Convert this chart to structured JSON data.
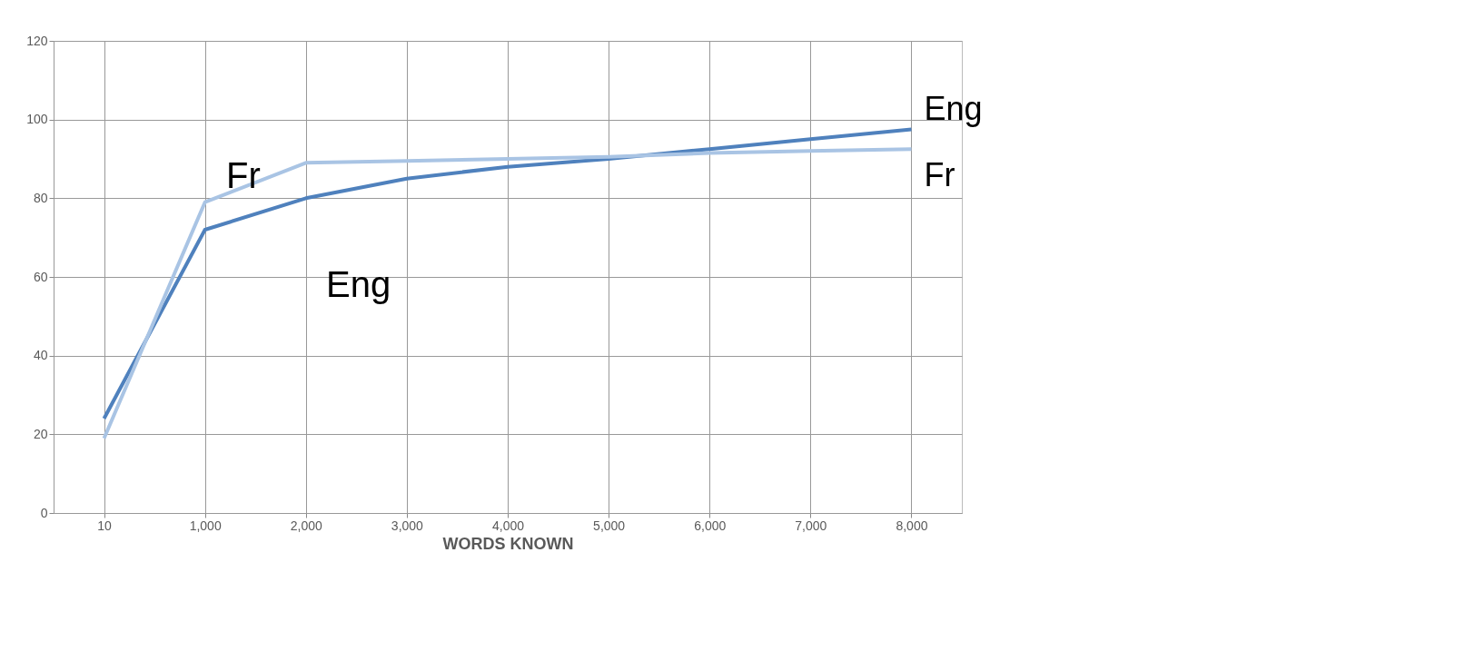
{
  "chart_data": {
    "type": "line",
    "xlabel": "WORDS KNOWN",
    "categories": [
      "10",
      "1,000",
      "2,000",
      "3,000",
      "4,000",
      "5,000",
      "6,000",
      "7,000",
      "8,000"
    ],
    "series": [
      {
        "name": "Eng",
        "color": "#4f81bd",
        "values": [
          24,
          72,
          80,
          85,
          88,
          90,
          92.5,
          95,
          97.5
        ]
      },
      {
        "name": "Fr",
        "color": "#a9c4e4",
        "values": [
          19,
          79,
          89,
          89.5,
          90,
          90.5,
          91.5,
          92,
          92.5
        ]
      }
    ],
    "annotations": [
      "Fr",
      "Eng"
    ],
    "ylim": [
      0,
      120
    ],
    "yticks": [
      0,
      20,
      40,
      60,
      80,
      100,
      120
    ],
    "grid": true,
    "marker": "none",
    "line_style": "solid"
  }
}
